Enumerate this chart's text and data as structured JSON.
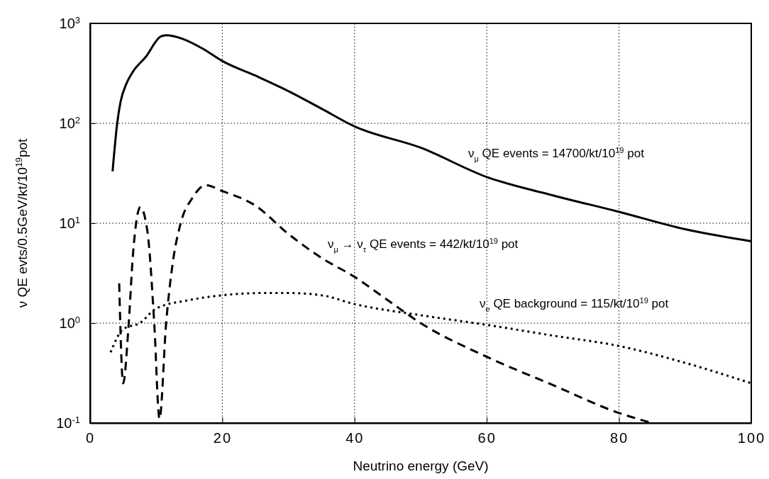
{
  "chart_data": {
    "type": "line",
    "xlabel": "Neutrino energy (GeV)",
    "ylabel": "ν QE evts/0.5GeV/kt/10$^{19}$pot",
    "log": "y",
    "grid": true,
    "xlim": [
      0,
      100
    ],
    "xticks": [
      0,
      20,
      40,
      60,
      80,
      100
    ],
    "ylim": [
      0.1,
      1000
    ],
    "yticks": [
      {
        "value": 0.1,
        "label": "10$^{-1}$"
      },
      {
        "value": 1,
        "label": "10$^{0}$"
      },
      {
        "value": 10,
        "label": "10$^{1}$"
      },
      {
        "value": 100,
        "label": "10$^{2}$"
      },
      {
        "value": 1000,
        "label": "10$^{3}$"
      }
    ],
    "series": [
      {
        "color": "#000000",
        "line_style": "solid",
        "x": [
          3.4,
          4.1,
          4.6,
          5.5,
          6.5,
          8.4,
          10.7,
          11.5,
          14,
          17,
          20,
          25,
          30,
          35,
          40,
          50,
          60,
          70,
          80,
          90,
          100
        ],
        "values": [
          33,
          100,
          163,
          250,
          330,
          460,
          740,
          760,
          700,
          560,
          420,
          300,
          210,
          140,
          93,
          57,
          29,
          19,
          13,
          8.7,
          6.6
        ]
      },
      {
        "color": "#000000",
        "line_style": "dashed",
        "x": [
          4.4,
          5,
          5.8,
          6.5,
          7.6,
          8.7,
          9.7,
          10.5,
          11.5,
          12.5,
          13.7,
          15.5,
          17.5,
          20,
          25,
          30,
          35,
          40,
          45,
          50,
          60,
          70,
          80,
          85
        ],
        "values": [
          2.5,
          0.25,
          0.9,
          5,
          14.5,
          8,
          1,
          0.11,
          1,
          4,
          10,
          18,
          24,
          21,
          15,
          7.8,
          4.5,
          2.9,
          1.7,
          1.0,
          0.46,
          0.24,
          0.126,
          0.1
        ]
      },
      {
        "color": "#000000",
        "line_style": "dotted",
        "x": [
          3.1,
          5,
          7.5,
          10,
          15,
          20,
          26,
          30,
          35,
          40,
          50,
          60,
          70,
          80,
          90,
          100
        ],
        "values": [
          0.51,
          0.87,
          1.0,
          1.4,
          1.7,
          1.9,
          2.0,
          2.0,
          1.9,
          1.55,
          1.2,
          0.96,
          0.75,
          0.59,
          0.4,
          0.25
        ]
      }
    ],
    "annotations": [
      "ν$_{μ}$ QE events = 14700/kt/10$^{19}$ pot",
      "ν$_{μ}$ → ν$_{τ}$ QE events = 442/kt/10$^{19}$ pot",
      "ν$_{e}$ QE background = 115/kt/10$^{19}$ pot"
    ]
  }
}
